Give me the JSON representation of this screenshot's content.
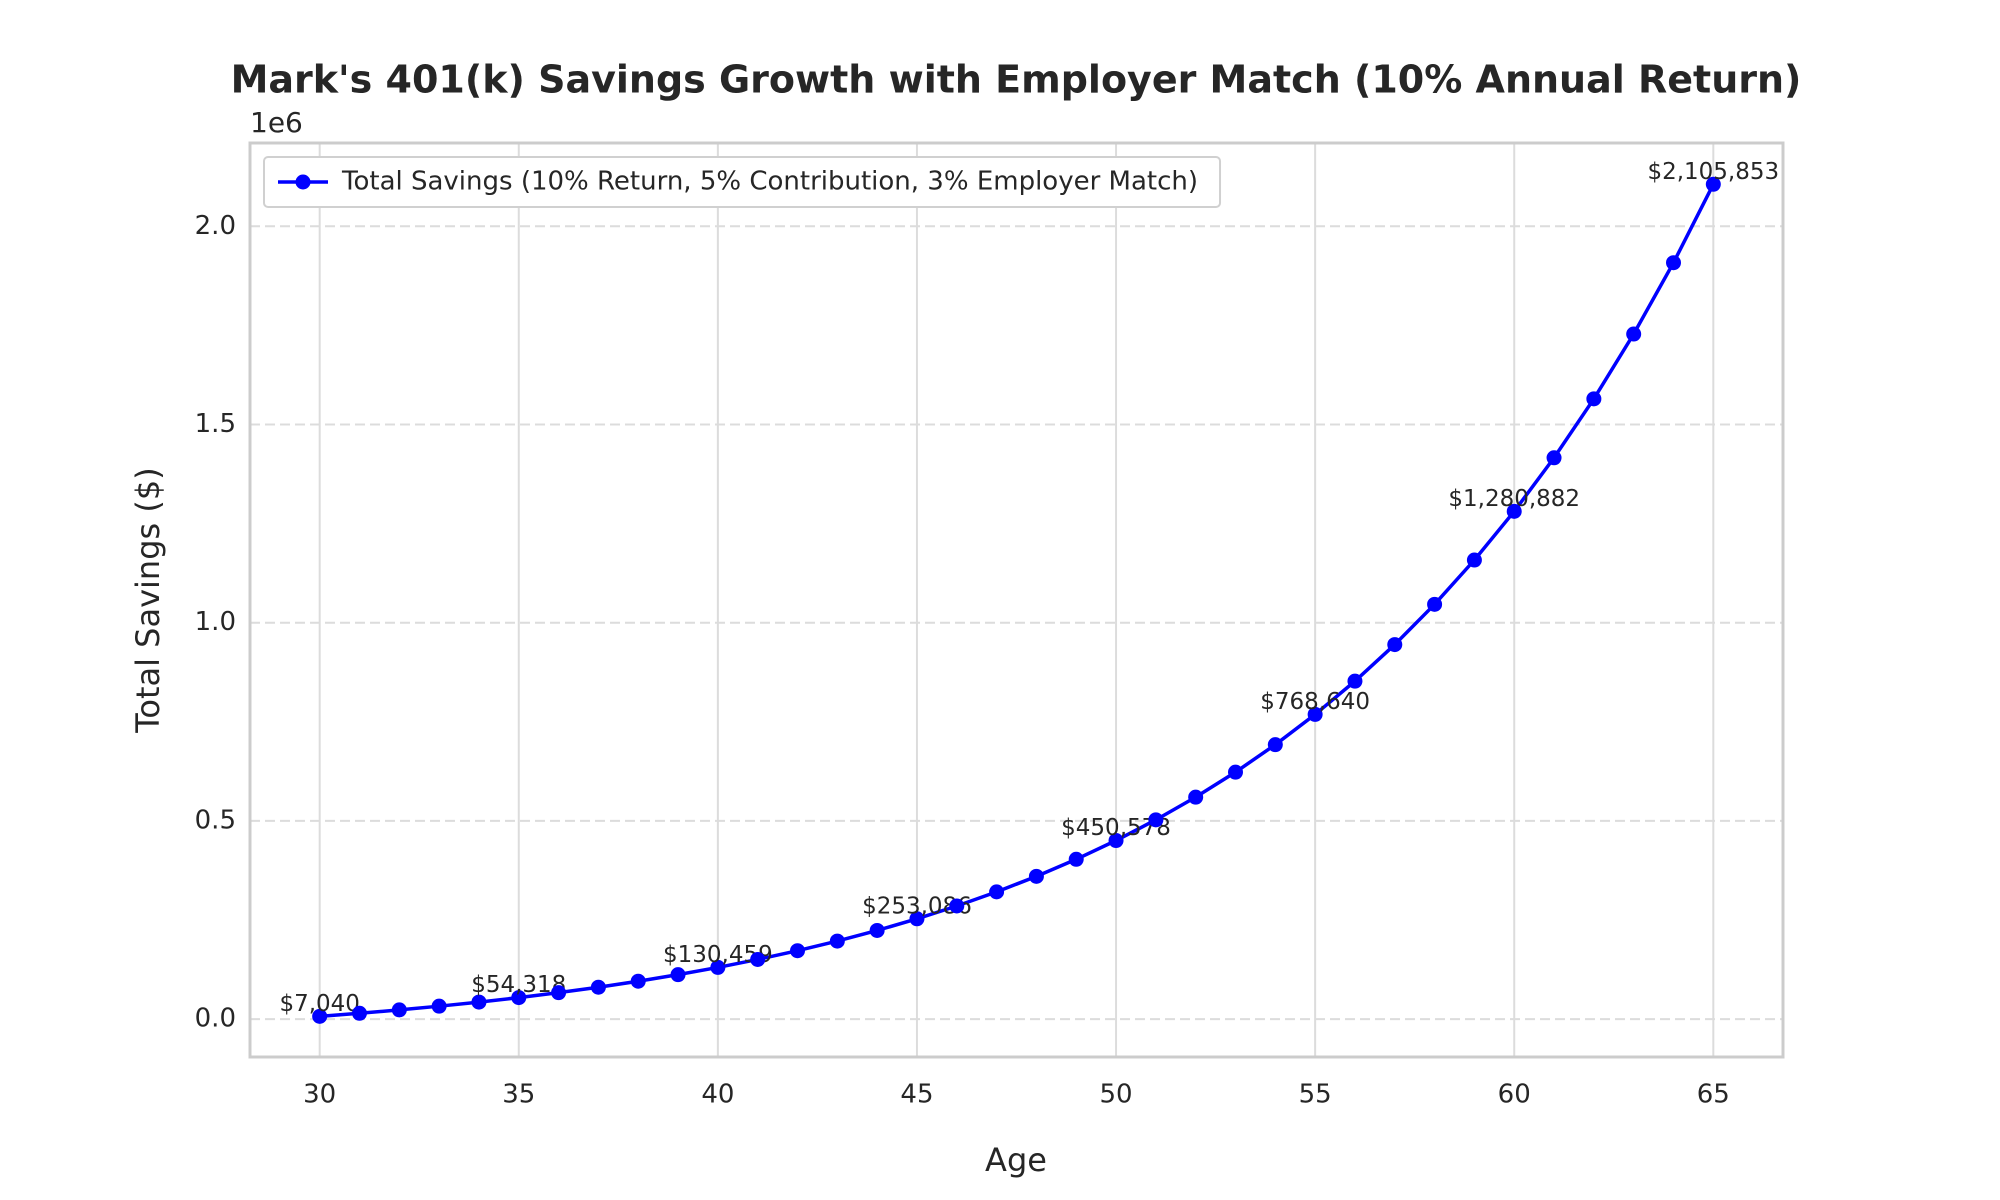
{
  "chart_data": {
    "type": "line",
    "title": "Mark's 401(k) Savings Growth with Employer Match (10% Annual Return)",
    "xlabel": "Age",
    "ylabel": "Total Savings ($)",
    "y_offset_label": "1e6",
    "x": [
      30,
      31,
      32,
      33,
      34,
      35,
      36,
      37,
      38,
      39,
      40,
      41,
      42,
      43,
      44,
      45,
      46,
      47,
      48,
      49,
      50,
      51,
      52,
      53,
      54,
      55,
      56,
      57,
      58,
      59,
      60,
      61,
      62,
      63,
      64,
      65
    ],
    "series": [
      {
        "name": "Total Savings (10% Return, 5% Contribution, 3% Employer Match)",
        "color": "#0000ff",
        "values": [
          7040,
          14784,
          23302,
          32673,
          42980,
          54318,
          66790,
          80509,
          95600,
          112199,
          130459,
          150545,
          172640,
          196944,
          223678,
          253086,
          285435,
          321018,
          360160,
          403216,
          450578,
          502675,
          559983,
          623021,
          692363,
          768640,
          852544,
          944838,
          1046362,
          1158038,
          1280882,
          1416010,
          1564651,
          1728156,
          1908012,
          2105853
        ],
        "value_labels": [
          "$7,040",
          null,
          null,
          null,
          null,
          "$54,318",
          null,
          null,
          null,
          null,
          "$130,459",
          null,
          null,
          null,
          null,
          "$253,086",
          null,
          null,
          null,
          null,
          "$450,578",
          null,
          null,
          null,
          null,
          "$768,640",
          null,
          null,
          null,
          null,
          "$1,280,882",
          null,
          null,
          null,
          null,
          "$2,105,853"
        ]
      }
    ],
    "xlim": [
      28.25,
      66.75
    ],
    "xticks": [
      30,
      35,
      40,
      45,
      50,
      55,
      60,
      65
    ],
    "ylim": [
      -95500,
      2210000
    ],
    "yticks": [
      {
        "value": 0,
        "label": "0.0"
      },
      {
        "value": 500000,
        "label": "0.5"
      },
      {
        "value": 1000000,
        "label": "1.0"
      },
      {
        "value": 1500000,
        "label": "1.5"
      },
      {
        "value": 2000000,
        "label": "2.0"
      }
    ],
    "grid": true,
    "legend": "upper left"
  }
}
